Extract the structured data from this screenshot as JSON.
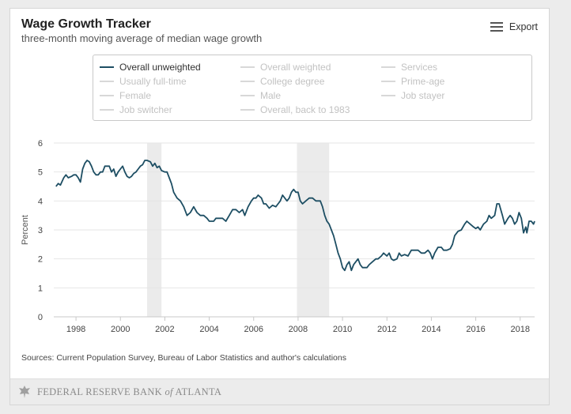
{
  "header": {
    "title": "Wage Growth Tracker",
    "subtitle": "three-month moving average of median wage growth",
    "export_label": "Export"
  },
  "legend": {
    "items": [
      {
        "label": "Overall unweighted",
        "active": true
      },
      {
        "label": "Overall weighted",
        "active": false
      },
      {
        "label": "Services",
        "active": false
      },
      {
        "label": "Usually full-time",
        "active": false
      },
      {
        "label": "College degree",
        "active": false
      },
      {
        "label": "Prime-age",
        "active": false
      },
      {
        "label": "Female",
        "active": false
      },
      {
        "label": "Male",
        "active": false
      },
      {
        "label": "Job stayer",
        "active": false
      },
      {
        "label": "Job switcher",
        "active": false
      },
      {
        "label": "Overall, back to 1983",
        "active": false
      }
    ]
  },
  "footer": {
    "sources": "Sources: Current Population Survey, Bureau of Labor Statistics and author's calculations",
    "org_main": "FEDERAL RESERVE BANK",
    "org_of": "of",
    "org_city": "ATLANTA"
  },
  "colors": {
    "line": "#1d4e63",
    "recession": "#ebebeb",
    "grid": "#e6e6e6"
  },
  "chart_data": {
    "type": "line",
    "title": "Wage Growth Tracker",
    "subtitle": "three-month moving average of median wage growth",
    "xlabel": "",
    "ylabel": "Percent",
    "xlim": [
      1997.0,
      2018.65
    ],
    "ylim": [
      0,
      6
    ],
    "x_ticks": [
      1998,
      2000,
      2002,
      2004,
      2006,
      2008,
      2010,
      2012,
      2014,
      2016,
      2018
    ],
    "y_ticks": [
      0,
      1,
      2,
      3,
      4,
      5,
      6
    ],
    "grid": "horizontal",
    "recessions": [
      [
        2001.2,
        2001.85
      ],
      [
        2007.95,
        2009.4
      ]
    ],
    "series": [
      {
        "name": "Overall unweighted",
        "points": [
          [
            1997.1,
            4.5
          ],
          [
            1997.2,
            4.6
          ],
          [
            1997.3,
            4.55
          ],
          [
            1997.45,
            4.8
          ],
          [
            1997.55,
            4.9
          ],
          [
            1997.65,
            4.8
          ],
          [
            1997.8,
            4.85
          ],
          [
            1997.9,
            4.9
          ],
          [
            1998.0,
            4.9
          ],
          [
            1998.1,
            4.8
          ],
          [
            1998.2,
            4.65
          ],
          [
            1998.3,
            5.1
          ],
          [
            1998.4,
            5.3
          ],
          [
            1998.5,
            5.4
          ],
          [
            1998.6,
            5.35
          ],
          [
            1998.7,
            5.2
          ],
          [
            1998.8,
            5.0
          ],
          [
            1998.9,
            4.9
          ],
          [
            1999.0,
            4.9
          ],
          [
            1999.1,
            5.0
          ],
          [
            1999.2,
            5.0
          ],
          [
            1999.3,
            5.2
          ],
          [
            1999.4,
            5.2
          ],
          [
            1999.5,
            5.2
          ],
          [
            1999.6,
            5.0
          ],
          [
            1999.7,
            5.1
          ],
          [
            1999.8,
            4.85
          ],
          [
            1999.9,
            5.0
          ],
          [
            2000.0,
            5.1
          ],
          [
            2000.1,
            5.2
          ],
          [
            2000.2,
            5.0
          ],
          [
            2000.3,
            4.85
          ],
          [
            2000.4,
            4.8
          ],
          [
            2000.5,
            4.85
          ],
          [
            2000.6,
            4.95
          ],
          [
            2000.7,
            5.0
          ],
          [
            2000.8,
            5.1
          ],
          [
            2000.9,
            5.2
          ],
          [
            2001.0,
            5.25
          ],
          [
            2001.1,
            5.4
          ],
          [
            2001.2,
            5.4
          ],
          [
            2001.35,
            5.35
          ],
          [
            2001.45,
            5.2
          ],
          [
            2001.55,
            5.3
          ],
          [
            2001.65,
            5.15
          ],
          [
            2001.75,
            5.2
          ],
          [
            2001.85,
            5.05
          ],
          [
            2002.0,
            5.0
          ],
          [
            2002.1,
            5.0
          ],
          [
            2002.2,
            4.8
          ],
          [
            2002.3,
            4.6
          ],
          [
            2002.4,
            4.3
          ],
          [
            2002.55,
            4.1
          ],
          [
            2002.7,
            4.0
          ],
          [
            2002.85,
            3.8
          ],
          [
            2003.0,
            3.5
          ],
          [
            2003.15,
            3.6
          ],
          [
            2003.3,
            3.8
          ],
          [
            2003.45,
            3.6
          ],
          [
            2003.6,
            3.5
          ],
          [
            2003.75,
            3.5
          ],
          [
            2003.9,
            3.4
          ],
          [
            2004.0,
            3.3
          ],
          [
            2004.2,
            3.3
          ],
          [
            2004.3,
            3.4
          ],
          [
            2004.45,
            3.4
          ],
          [
            2004.6,
            3.4
          ],
          [
            2004.75,
            3.3
          ],
          [
            2004.9,
            3.5
          ],
          [
            2005.05,
            3.7
          ],
          [
            2005.2,
            3.7
          ],
          [
            2005.35,
            3.6
          ],
          [
            2005.5,
            3.7
          ],
          [
            2005.6,
            3.5
          ],
          [
            2005.75,
            3.8
          ],
          [
            2005.9,
            4.0
          ],
          [
            2006.0,
            4.1
          ],
          [
            2006.1,
            4.1
          ],
          [
            2006.2,
            4.2
          ],
          [
            2006.35,
            4.1
          ],
          [
            2006.45,
            3.9
          ],
          [
            2006.55,
            3.9
          ],
          [
            2006.7,
            3.75
          ],
          [
            2006.85,
            3.85
          ],
          [
            2007.0,
            3.8
          ],
          [
            2007.1,
            3.9
          ],
          [
            2007.2,
            4.0
          ],
          [
            2007.3,
            4.2
          ],
          [
            2007.4,
            4.1
          ],
          [
            2007.5,
            4.0
          ],
          [
            2007.6,
            4.1
          ],
          [
            2007.7,
            4.3
          ],
          [
            2007.8,
            4.4
          ],
          [
            2007.9,
            4.3
          ],
          [
            2008.0,
            4.3
          ],
          [
            2008.1,
            4.0
          ],
          [
            2008.2,
            3.9
          ],
          [
            2008.35,
            4.0
          ],
          [
            2008.5,
            4.1
          ],
          [
            2008.65,
            4.1
          ],
          [
            2008.8,
            4.0
          ],
          [
            2009.0,
            4.0
          ],
          [
            2009.1,
            3.8
          ],
          [
            2009.2,
            3.5
          ],
          [
            2009.3,
            3.3
          ],
          [
            2009.4,
            3.2
          ],
          [
            2009.5,
            3.0
          ],
          [
            2009.6,
            2.8
          ],
          [
            2009.7,
            2.5
          ],
          [
            2009.8,
            2.2
          ],
          [
            2009.9,
            2.0
          ],
          [
            2010.0,
            1.7
          ],
          [
            2010.1,
            1.6
          ],
          [
            2010.2,
            1.8
          ],
          [
            2010.3,
            1.9
          ],
          [
            2010.4,
            1.6
          ],
          [
            2010.5,
            1.8
          ],
          [
            2010.6,
            1.9
          ],
          [
            2010.7,
            2.0
          ],
          [
            2010.8,
            1.8
          ],
          [
            2010.9,
            1.7
          ],
          [
            2011.0,
            1.7
          ],
          [
            2011.1,
            1.7
          ],
          [
            2011.2,
            1.8
          ],
          [
            2011.35,
            1.9
          ],
          [
            2011.5,
            2.0
          ],
          [
            2011.6,
            2.0
          ],
          [
            2011.75,
            2.1
          ],
          [
            2011.85,
            2.2
          ],
          [
            2012.0,
            2.1
          ],
          [
            2012.1,
            2.2
          ],
          [
            2012.2,
            2.0
          ],
          [
            2012.3,
            1.95
          ],
          [
            2012.45,
            2.0
          ],
          [
            2012.55,
            2.2
          ],
          [
            2012.65,
            2.1
          ],
          [
            2012.8,
            2.15
          ],
          [
            2012.95,
            2.1
          ],
          [
            2013.1,
            2.3
          ],
          [
            2013.25,
            2.3
          ],
          [
            2013.4,
            2.3
          ],
          [
            2013.55,
            2.2
          ],
          [
            2013.7,
            2.2
          ],
          [
            2013.85,
            2.3
          ],
          [
            2013.95,
            2.2
          ],
          [
            2014.05,
            2.0
          ],
          [
            2014.15,
            2.2
          ],
          [
            2014.3,
            2.4
          ],
          [
            2014.45,
            2.4
          ],
          [
            2014.55,
            2.3
          ],
          [
            2014.7,
            2.3
          ],
          [
            2014.85,
            2.35
          ],
          [
            2014.95,
            2.5
          ],
          [
            2015.05,
            2.8
          ],
          [
            2015.2,
            2.95
          ],
          [
            2015.35,
            3.0
          ],
          [
            2015.5,
            3.2
          ],
          [
            2015.6,
            3.3
          ],
          [
            2015.75,
            3.2
          ],
          [
            2015.9,
            3.1
          ],
          [
            2016.0,
            3.05
          ],
          [
            2016.1,
            3.1
          ],
          [
            2016.2,
            3.0
          ],
          [
            2016.35,
            3.2
          ],
          [
            2016.5,
            3.3
          ],
          [
            2016.6,
            3.5
          ],
          [
            2016.7,
            3.4
          ],
          [
            2016.85,
            3.5
          ],
          [
            2016.95,
            3.9
          ],
          [
            2017.05,
            3.9
          ],
          [
            2017.2,
            3.5
          ],
          [
            2017.3,
            3.2
          ],
          [
            2017.45,
            3.4
          ],
          [
            2017.55,
            3.5
          ],
          [
            2017.65,
            3.4
          ],
          [
            2017.75,
            3.2
          ],
          [
            2017.85,
            3.3
          ],
          [
            2017.95,
            3.6
          ],
          [
            2018.05,
            3.4
          ],
          [
            2018.15,
            2.9
          ],
          [
            2018.25,
            3.1
          ],
          [
            2018.3,
            2.9
          ],
          [
            2018.4,
            3.3
          ],
          [
            2018.5,
            3.3
          ],
          [
            2018.6,
            3.2
          ],
          [
            2018.65,
            3.3
          ]
        ]
      }
    ]
  }
}
